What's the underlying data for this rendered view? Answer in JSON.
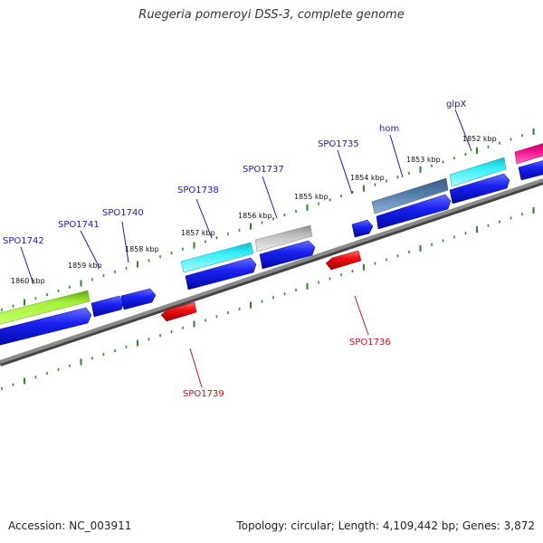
{
  "title": "Ruegeria pomeroyi DSS-3, complete genome",
  "footer": {
    "accession": "Accession: NC_003911",
    "topology": "Topology: circular; Length: 4,109,442 bp; Genes: 3,872"
  },
  "colors": {
    "forward_gene": "#0a14e6",
    "reverse_gene": "#e60a0a",
    "label_forward": "#1a1ab8",
    "label_reverse": "#cc1111",
    "backbone": "#8a8a8a",
    "tick": "#2a8a2a"
  },
  "kbp_labels": [
    "1860 kbp",
    "1859 kbp",
    "1858 kbp",
    "1857 kbp",
    "1856 kbp",
    "1855 kbp",
    "1854 kbp",
    "1853 kbp",
    "1852 kbp"
  ],
  "genes_top": [
    {
      "name": "SPO1742"
    },
    {
      "name": "SPO1741"
    },
    {
      "name": "SPO1740"
    },
    {
      "name": "SPO1738"
    },
    {
      "name": "SPO1737"
    },
    {
      "name": "SPO1735"
    },
    {
      "name": "hom"
    },
    {
      "name": "glpX"
    }
  ],
  "genes_bottom": [
    {
      "name": "SPO1739"
    },
    {
      "name": "SPO1736"
    }
  ]
}
